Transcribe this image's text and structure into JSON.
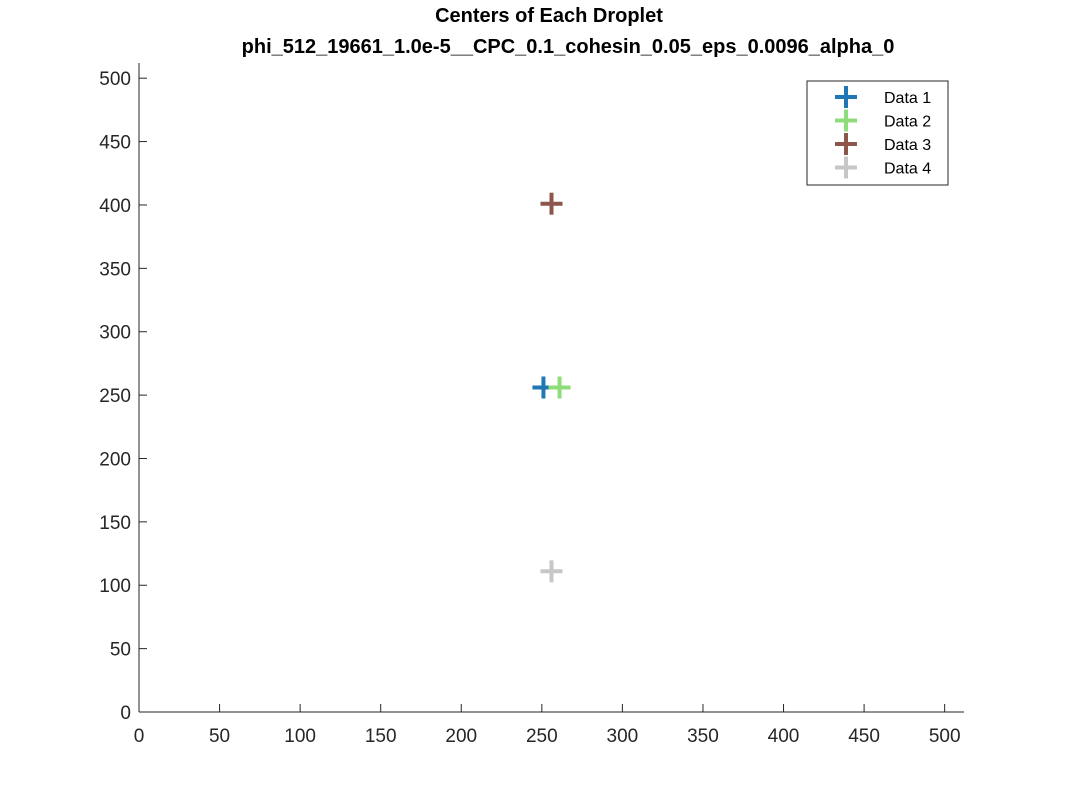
{
  "chart_data": {
    "type": "scatter",
    "title": "Centers of Each Droplet",
    "subtitle": "phi_512_19661_1.0e-5__CPC_0.1_cohesin_0.05_eps_0.0096_alpha_0",
    "xlabel": "",
    "ylabel": "",
    "xlim": [
      0,
      512
    ],
    "ylim": [
      0,
      512
    ],
    "xticks": [
      0,
      50,
      100,
      150,
      200,
      250,
      300,
      350,
      400,
      450,
      500
    ],
    "yticks": [
      0,
      50,
      100,
      150,
      200,
      250,
      300,
      350,
      400,
      450,
      500
    ],
    "grid": false,
    "legend_position": "top-right",
    "marker": "plus",
    "series": [
      {
        "name": "Data 1",
        "color": "#1f77b4",
        "points": [
          [
            251,
            256
          ]
        ]
      },
      {
        "name": "Data 2",
        "color": "#8fdc7b",
        "points": [
          [
            261,
            256
          ]
        ]
      },
      {
        "name": "Data 3",
        "color": "#8c564b",
        "points": [
          [
            256,
            401
          ]
        ]
      },
      {
        "name": "Data 4",
        "color": "#c7c7c7",
        "points": [
          [
            256,
            111
          ]
        ]
      }
    ]
  }
}
